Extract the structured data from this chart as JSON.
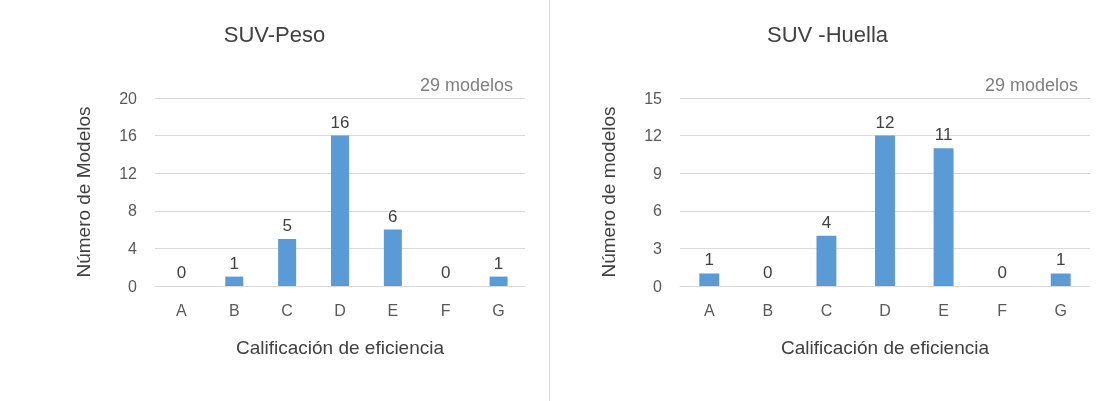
{
  "chart_data": [
    {
      "type": "bar",
      "title": "SUV-Peso",
      "xlabel": "Calificación de eficiencia",
      "ylabel": "Número de Modelos",
      "annotations": [
        "29 modelos"
      ],
      "categories": [
        "A",
        "B",
        "C",
        "D",
        "E",
        "F",
        "G"
      ],
      "values": [
        0,
        1,
        5,
        16,
        6,
        0,
        1
      ],
      "color": "#5b9bd5",
      "ylim": [
        0,
        20
      ],
      "yticks": [
        0,
        4,
        8,
        12,
        16,
        20
      ],
      "grid": "y",
      "data_labels": true
    },
    {
      "type": "bar",
      "title": "SUV -Huella",
      "xlabel": "Calificación de eficiencia",
      "ylabel": "Número de modelos",
      "annotations": [
        "29 modelos"
      ],
      "categories": [
        "A",
        "B",
        "C",
        "D",
        "E",
        "F",
        "G"
      ],
      "values": [
        1,
        0,
        4,
        12,
        11,
        0,
        1
      ],
      "color": "#5b9bd5",
      "ylim": [
        0,
        15
      ],
      "yticks": [
        0,
        3,
        6,
        9,
        12,
        15
      ],
      "grid": "y",
      "data_labels": true
    }
  ]
}
